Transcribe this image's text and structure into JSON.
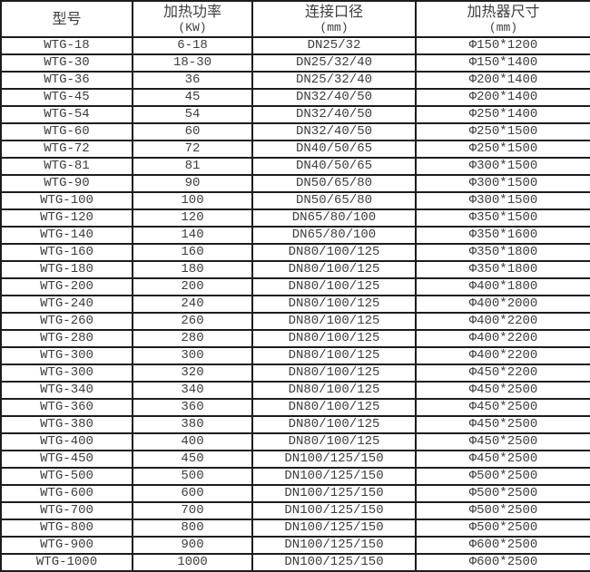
{
  "colors": {
    "text": "#3d3d3d",
    "border": "#1c1c1c",
    "background": "#ffffff"
  },
  "table": {
    "columns": [
      {
        "label": "型号",
        "sub": ""
      },
      {
        "label": "加热功率",
        "sub": "(KW)"
      },
      {
        "label": "连接口径",
        "sub": "(mm)"
      },
      {
        "label": "加热器尺寸",
        "sub": "(mm)"
      }
    ],
    "rows": [
      [
        "WTG-18",
        "6-18",
        "DN25/32",
        "Φ150*1200"
      ],
      [
        "WTG-30",
        "18-30",
        "DN25/32/40",
        "Φ150*1400"
      ],
      [
        "WTG-36",
        "36",
        "DN25/32/40",
        "Φ200*1400"
      ],
      [
        "WTG-45",
        "45",
        "DN32/40/50",
        "Φ200*1400"
      ],
      [
        "WTG-54",
        "54",
        "DN32/40/50",
        "Φ250*1400"
      ],
      [
        "WTG-60",
        "60",
        "DN32/40/50",
        "Φ250*1500"
      ],
      [
        "WTG-72",
        "72",
        "DN40/50/65",
        "Φ250*1500"
      ],
      [
        "WTG-81",
        "81",
        "DN40/50/65",
        "Φ300*1500"
      ],
      [
        "WTG-90",
        "90",
        "DN50/65/80",
        "Φ300*1500"
      ],
      [
        "WTG-100",
        "100",
        "DN50/65/80",
        "Φ300*1500"
      ],
      [
        "WTG-120",
        "120",
        "DN65/80/100",
        "Φ350*1500"
      ],
      [
        "WTG-140",
        "140",
        "DN65/80/100",
        "Φ350*1600"
      ],
      [
        "WTG-160",
        "160",
        "DN80/100/125",
        "Φ350*1800"
      ],
      [
        "WTG-180",
        "180",
        "DN80/100/125",
        "Φ350*1800"
      ],
      [
        "WTG-200",
        "200",
        "DN80/100/125",
        "Φ400*1800"
      ],
      [
        "WTG-240",
        "240",
        "DN80/100/125",
        "Φ400*2000"
      ],
      [
        "WTG-260",
        "260",
        "DN80/100/125",
        "Φ400*2200"
      ],
      [
        "WTG-280",
        "280",
        "DN80/100/125",
        "Φ400*2200"
      ],
      [
        "WTG-300",
        "300",
        "DN80/100/125",
        "Φ400*2200"
      ],
      [
        "WTG-300",
        "320",
        "DN80/100/125",
        "Φ450*2200"
      ],
      [
        "WTG-340",
        "340",
        "DN80/100/125",
        "Φ450*2500"
      ],
      [
        "WTG-360",
        "360",
        "DN80/100/125",
        "Φ450*2500"
      ],
      [
        "WTG-380",
        "380",
        "DN80/100/125",
        "Φ450*2500"
      ],
      [
        "WTG-400",
        "400",
        "DN80/100/125",
        "Φ450*2500"
      ],
      [
        "WTG-450",
        "450",
        "DN100/125/150",
        "Φ450*2500"
      ],
      [
        "WTG-500",
        "500",
        "DN100/125/150",
        "Φ500*2500"
      ],
      [
        "WTG-600",
        "600",
        "DN100/125/150",
        "Φ500*2500"
      ],
      [
        "WTG-700",
        "700",
        "DN100/125/150",
        "Φ500*2500"
      ],
      [
        "WTG-800",
        "800",
        "DN100/125/150",
        "Φ500*2500"
      ],
      [
        "WTG-900",
        "900",
        "DN100/125/150",
        "Φ600*2500"
      ],
      [
        "WTG-1000",
        "1000",
        "DN100/125/150",
        "Φ600*2500"
      ]
    ]
  }
}
